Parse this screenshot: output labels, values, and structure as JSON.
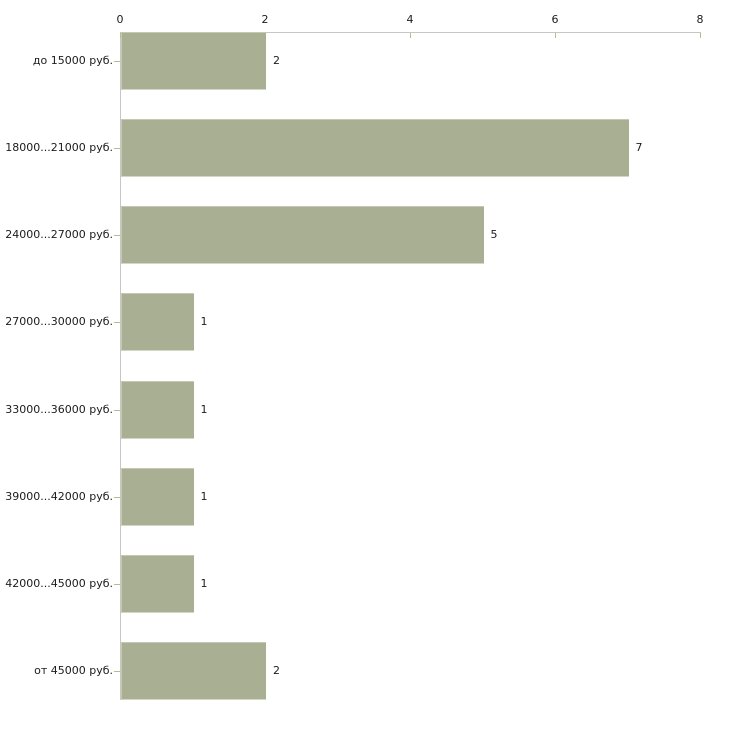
{
  "chart_data": {
    "type": "bar",
    "orientation": "horizontal",
    "title": "",
    "xlabel": "",
    "ylabel": "",
    "categories": [
      "до 15000 руб.",
      "18000...21000 руб.",
      "24000...27000 руб.",
      "27000...30000 руб.",
      "33000...36000 руб.",
      "39000...42000 руб.",
      "42000...45000 руб.",
      "от 45000 руб."
    ],
    "values": [
      2,
      7,
      5,
      1,
      1,
      1,
      1,
      2
    ],
    "x_ticks": [
      0,
      2,
      4,
      6,
      8
    ],
    "xlim": [
      0,
      8
    ],
    "axis_position": "top",
    "grid": false,
    "legend": false,
    "bar_value_labels_shown": true,
    "colors": {
      "bar_fill": "#a9af93",
      "bar_edge_highlight": "#c6c9b1",
      "axis_line": "#c6c6c6",
      "tick_mark": "#b9bc8c",
      "text": "#1c1c1c",
      "background": "#ffffff"
    }
  }
}
